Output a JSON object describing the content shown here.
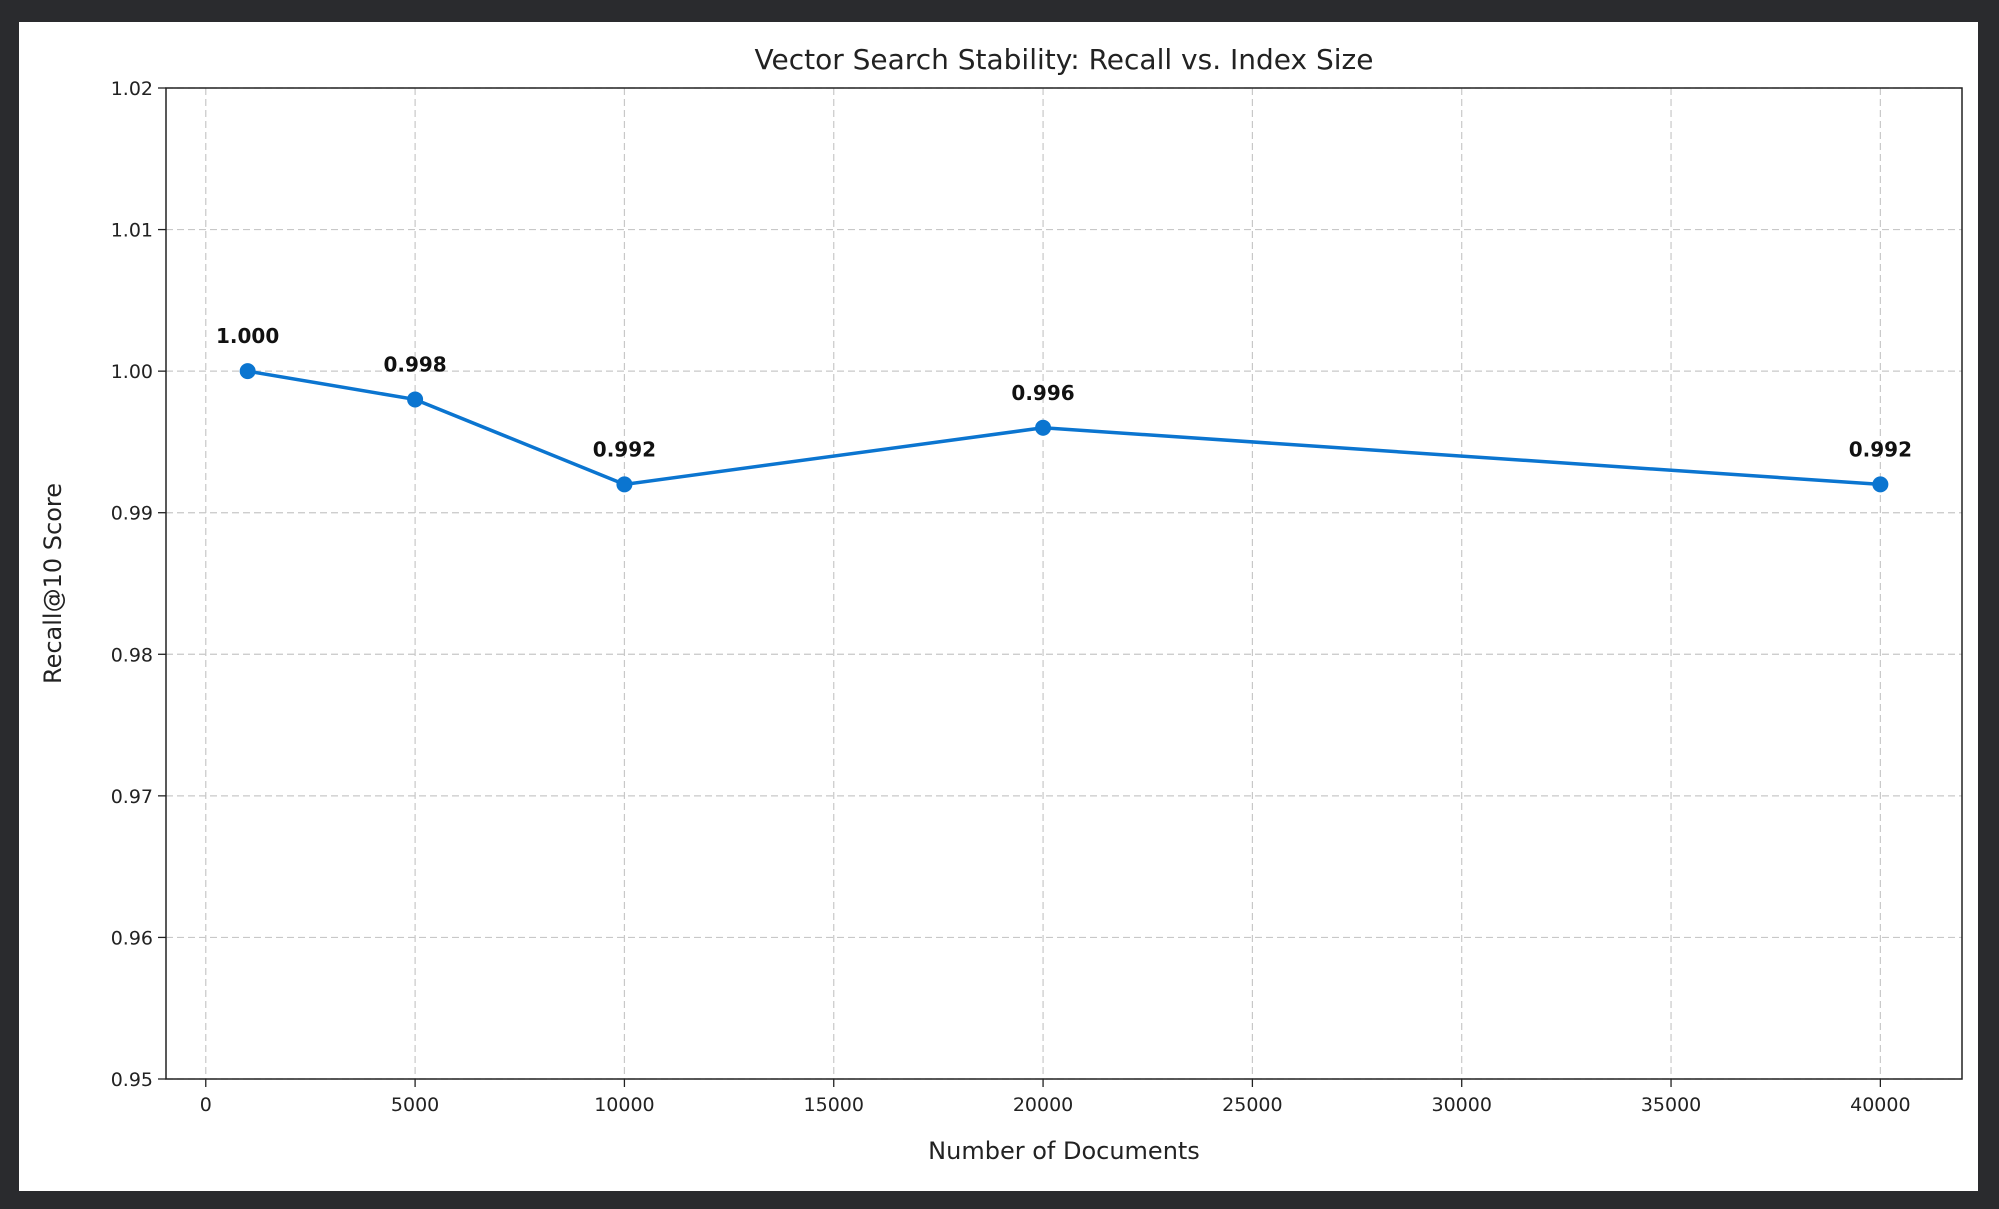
{
  "chart_data": {
    "type": "line",
    "title": "Vector Search Stability: Recall vs. Index Size",
    "xlabel": "Number of Documents",
    "ylabel": "Recall@10 Score",
    "x": [
      1000,
      5000,
      10000,
      20000,
      40000
    ],
    "series": [
      {
        "values": [
          1.0,
          0.998,
          0.992,
          0.996,
          0.992
        ],
        "data_labels": [
          "1.000",
          "0.998",
          "0.992",
          "0.996",
          "0.992"
        ]
      }
    ],
    "xlim": [
      -950,
      41950
    ],
    "ylim": [
      0.95,
      1.02
    ],
    "xticks": [
      0,
      5000,
      10000,
      15000,
      20000,
      25000,
      30000,
      35000,
      40000
    ],
    "xtick_labels": [
      "0",
      "5000",
      "10000",
      "15000",
      "20000",
      "25000",
      "30000",
      "35000",
      "40000"
    ],
    "yticks": [
      0.95,
      0.96,
      0.97,
      0.98,
      0.99,
      1.0,
      1.01,
      1.02
    ],
    "ytick_labels": [
      "0.95",
      "0.96",
      "0.97",
      "0.98",
      "0.99",
      "1.00",
      "1.01",
      "1.02"
    ],
    "grid": true,
    "grid_style": "dashed",
    "markers": "circle",
    "line_color": "#0b75d0",
    "background": "#2a2b2e"
  }
}
